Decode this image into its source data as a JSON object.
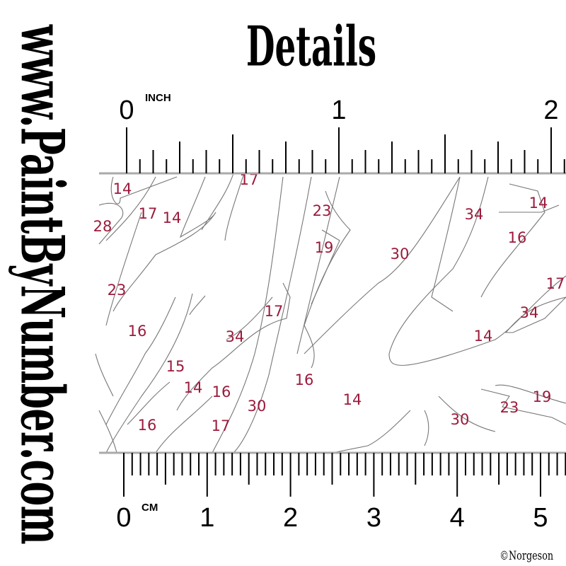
{
  "title": "Details",
  "side_text": "www.PaintByNumber.com",
  "copyright": "©Norgeson",
  "inch_ruler": {
    "unit": "INCH",
    "labels": [
      "0",
      "1",
      "2"
    ]
  },
  "cm_ruler": {
    "unit": "CM",
    "labels": [
      "0",
      "1",
      "2",
      "3",
      "4",
      "5"
    ]
  },
  "region_numbers": [
    "14",
    "17",
    "14",
    "28",
    "23",
    "16",
    "15",
    "14",
    "16",
    "16",
    "17",
    "30",
    "34",
    "17",
    "16",
    "14",
    "23",
    "19",
    "30",
    "34",
    "14",
    "16",
    "17",
    "34",
    "14",
    "19",
    "23",
    "30",
    "17"
  ],
  "colors": {
    "number": "#9b1b3c",
    "outline": "#777777",
    "ruler_base": "#aaaaaa"
  }
}
